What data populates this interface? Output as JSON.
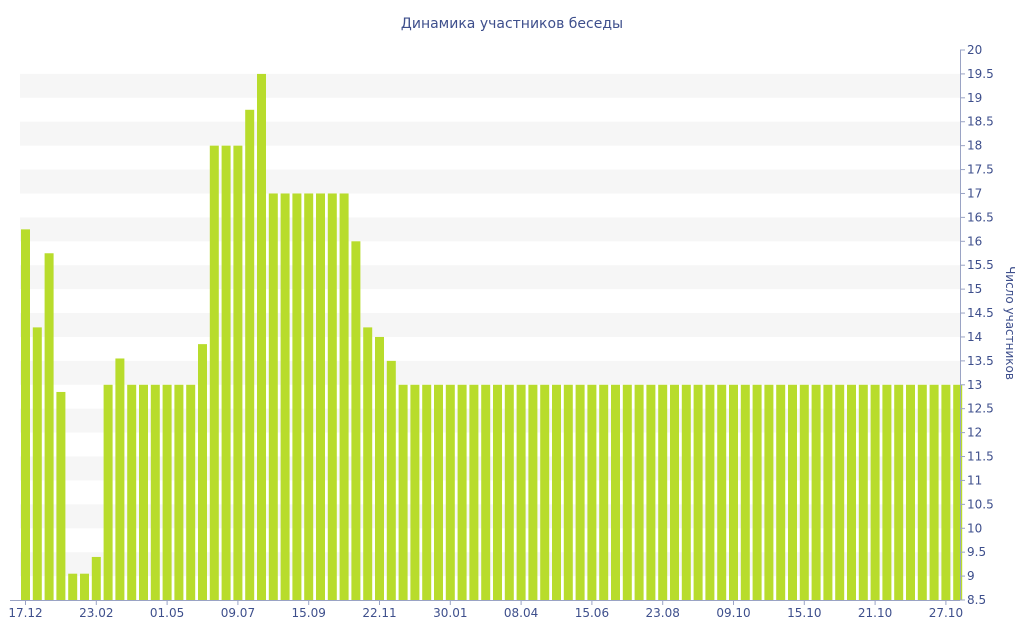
{
  "chart_data": {
    "type": "bar",
    "title": "Динамика участников беседы",
    "xlabel": "",
    "ylabel": "Число участников",
    "ylim": [
      8.5,
      20
    ],
    "y_ticks": [
      "8.5",
      "9",
      "9.5",
      "10",
      "10.5",
      "11",
      "11.5",
      "12",
      "12.5",
      "13",
      "13.5",
      "14",
      "14.5",
      "15",
      "15.5",
      "16",
      "16.5",
      "17",
      "17.5",
      "18",
      "18.5",
      "19",
      "19.5",
      "20"
    ],
    "y_axis_side": "right",
    "grid": "alternating horizontal bands",
    "legend": "none",
    "bar_color": "#b8dc2c",
    "x_tick_labels": [
      {
        "index": 0,
        "label": "17.12"
      },
      {
        "index": 6,
        "label": "23.02"
      },
      {
        "index": 12,
        "label": "01.05"
      },
      {
        "index": 18,
        "label": "09.07"
      },
      {
        "index": 24,
        "label": "15.09"
      },
      {
        "index": 30,
        "label": "22.11"
      },
      {
        "index": 36,
        "label": "30.01"
      },
      {
        "index": 42,
        "label": "08.04"
      },
      {
        "index": 48,
        "label": "15.06"
      },
      {
        "index": 54,
        "label": "23.08"
      },
      {
        "index": 60,
        "label": "09.10"
      },
      {
        "index": 66,
        "label": "15.10"
      },
      {
        "index": 72,
        "label": "21.10"
      },
      {
        "index": 78,
        "label": "27.10"
      }
    ],
    "values": [
      16.25,
      14.2,
      15.75,
      12.85,
      9.05,
      9.05,
      9.4,
      13.0,
      13.55,
      13.0,
      13.0,
      13.0,
      13.0,
      13.0,
      13.0,
      13.85,
      18.0,
      18.0,
      18.0,
      18.75,
      19.5,
      17.0,
      17.0,
      17.0,
      17.0,
      17.0,
      17.0,
      17.0,
      16.0,
      14.2,
      14.0,
      13.5,
      13.0,
      13.0,
      13.0,
      13.0,
      13.0,
      13.0,
      13.0,
      13.0,
      13.0,
      13.0,
      13.0,
      13.0,
      13.0,
      13.0,
      13.0,
      13.0,
      13.0,
      13.0,
      13.0,
      13.0,
      13.0,
      13.0,
      13.0,
      13.0,
      13.0,
      13.0,
      13.0,
      13.0,
      13.0,
      13.0,
      13.0,
      13.0,
      13.0,
      13.0,
      13.0,
      13.0,
      13.0,
      13.0,
      13.0,
      13.0,
      13.0,
      13.0,
      13.0,
      13.0,
      13.0,
      13.0,
      13.0,
      13.0
    ]
  }
}
